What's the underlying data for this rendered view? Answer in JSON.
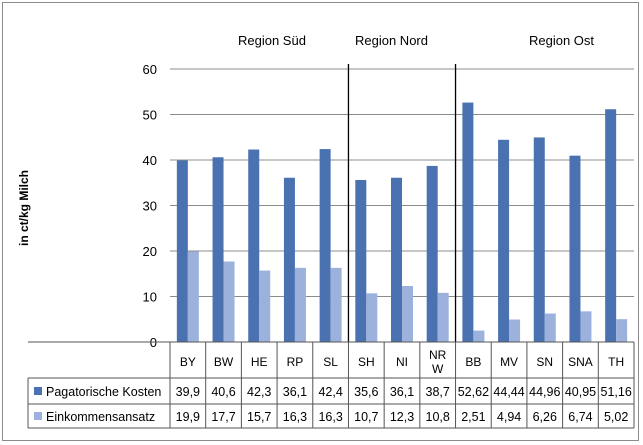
{
  "chart_data": {
    "type": "bar",
    "ylabel": "in ct/kg Milch",
    "ylim": [
      0,
      60
    ],
    "yticks": [
      "0",
      "10",
      "20",
      "30",
      "40",
      "50",
      "60"
    ],
    "grid": true,
    "categories": [
      "BY",
      "BW",
      "HE",
      "RP",
      "SL",
      "SH",
      "NI",
      "NR W",
      "BB",
      "MV",
      "SN",
      "SNA",
      "TH"
    ],
    "regions": [
      {
        "label": "Region Süd",
        "start": 0,
        "end": 4
      },
      {
        "label": "Region Nord",
        "start": 5,
        "end": 7
      },
      {
        "label": "Region Ost",
        "start": 8,
        "end": 12
      }
    ],
    "series": [
      {
        "name": "Pagatorische Kosten",
        "color": "#4a72b0",
        "values": [
          39.9,
          40.6,
          42.3,
          36.1,
          42.4,
          35.6,
          36.1,
          38.7,
          52.62,
          44.44,
          44.96,
          40.95,
          51.16
        ],
        "labels": [
          "39,9",
          "40,6",
          "42,3",
          "36,1",
          "42,4",
          "35,6",
          "36,1",
          "38,7",
          "52,62",
          "44,44",
          "44,96",
          "40,95",
          "51,16"
        ]
      },
      {
        "name": "Einkommensansatz",
        "color": "#9cb2dc",
        "values": [
          19.9,
          17.7,
          15.7,
          16.3,
          16.3,
          10.7,
          12.3,
          10.8,
          2.51,
          4.94,
          6.26,
          6.74,
          5.02
        ],
        "labels": [
          "19,9",
          "17,7",
          "15,7",
          "16,3",
          "16,3",
          "10,7",
          "12,3",
          "10,8",
          "2,51",
          "4,94",
          "6,26",
          "6,74",
          "5,02"
        ]
      }
    ]
  }
}
